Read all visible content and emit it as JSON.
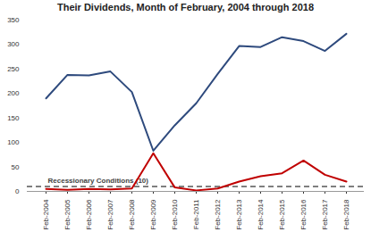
{
  "chart_data": {
    "type": "line",
    "title": "Their Dividends, Month of February, 2004 through 2018",
    "categories": [
      "Feb-2004",
      "Feb-2005",
      "Feb-2006",
      "Feb-2007",
      "Feb-2008",
      "Feb-2009",
      "Feb-2010",
      "Feb-2011",
      "Feb-2012",
      "Feb-2013",
      "Feb-2014",
      "Feb-2015",
      "Feb-2016",
      "Feb-2017",
      "Feb-2018"
    ],
    "series": [
      {
        "color": "#2e4a7d",
        "values": [
          190,
          238,
          237,
          245,
          203,
          83,
          135,
          180,
          240,
          297,
          295,
          315,
          307,
          287,
          322
        ]
      },
      {
        "color": "#c00000",
        "values": [
          5,
          3,
          5,
          4,
          6,
          78,
          8,
          2,
          6,
          20,
          31,
          37,
          63,
          34,
          20
        ]
      }
    ],
    "reference_line": {
      "value": 10,
      "label": "Recessionary Conditions (10)",
      "line_style": "dashed",
      "color": "#555555"
    },
    "ylim": [
      0,
      350
    ],
    "yticks": [
      0,
      50,
      100,
      150,
      200,
      250,
      300,
      350
    ],
    "grid": false
  }
}
